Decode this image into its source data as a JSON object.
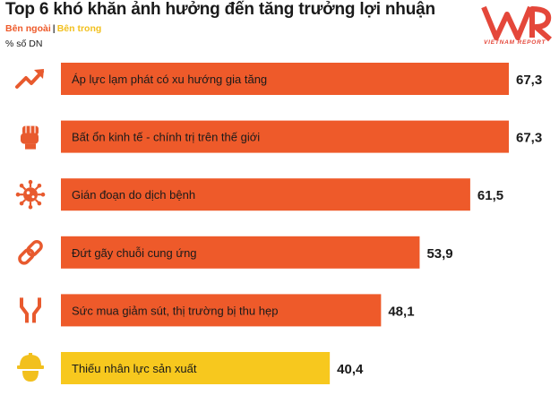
{
  "title": "Top 6 khó khăn ảnh hưởng đến tăng trưởng lợi nhuận",
  "legend": {
    "external": "Bên ngoài",
    "separator": "|",
    "internal": "Bên trong"
  },
  "unit": "% số DN",
  "brand": {
    "logo": "VNR",
    "name": "VIETNAM REPORT"
  },
  "colors": {
    "external": "#ee5a2a",
    "internal": "#f7c81e",
    "icon": "#e85a2e",
    "internal_icon": "#f2c01e"
  },
  "chart_data": {
    "type": "bar",
    "orientation": "horizontal",
    "categories": [
      "Áp lực lạm phát có xu hướng gia tăng",
      "Bất ổn kinh tế - chính trị trên thế giới",
      "Gián đoạn do dịch bệnh",
      "Đứt gãy chuỗi cung ứng",
      "Sức mua giảm sút, thị trường bị thu hẹp",
      "Thiếu nhân lực sản xuất"
    ],
    "values": [
      67.3,
      67.3,
      61.5,
      53.9,
      48.1,
      40.4
    ],
    "value_labels": [
      "67,3",
      "67,3",
      "61,5",
      "53,9",
      "48,1",
      "40,4"
    ],
    "groups": [
      "external",
      "external",
      "external",
      "external",
      "external",
      "internal"
    ],
    "icons": [
      "trend-up-icon",
      "fist-icon",
      "virus-icon",
      "broken-chain-icon",
      "narrowing-road-icon",
      "worker-helmet-icon"
    ],
    "title": "Top 6 khó khăn ảnh hưởng đến tăng trưởng lợi nhuận",
    "xlim": [
      0,
      67.3
    ],
    "grid": false
  }
}
